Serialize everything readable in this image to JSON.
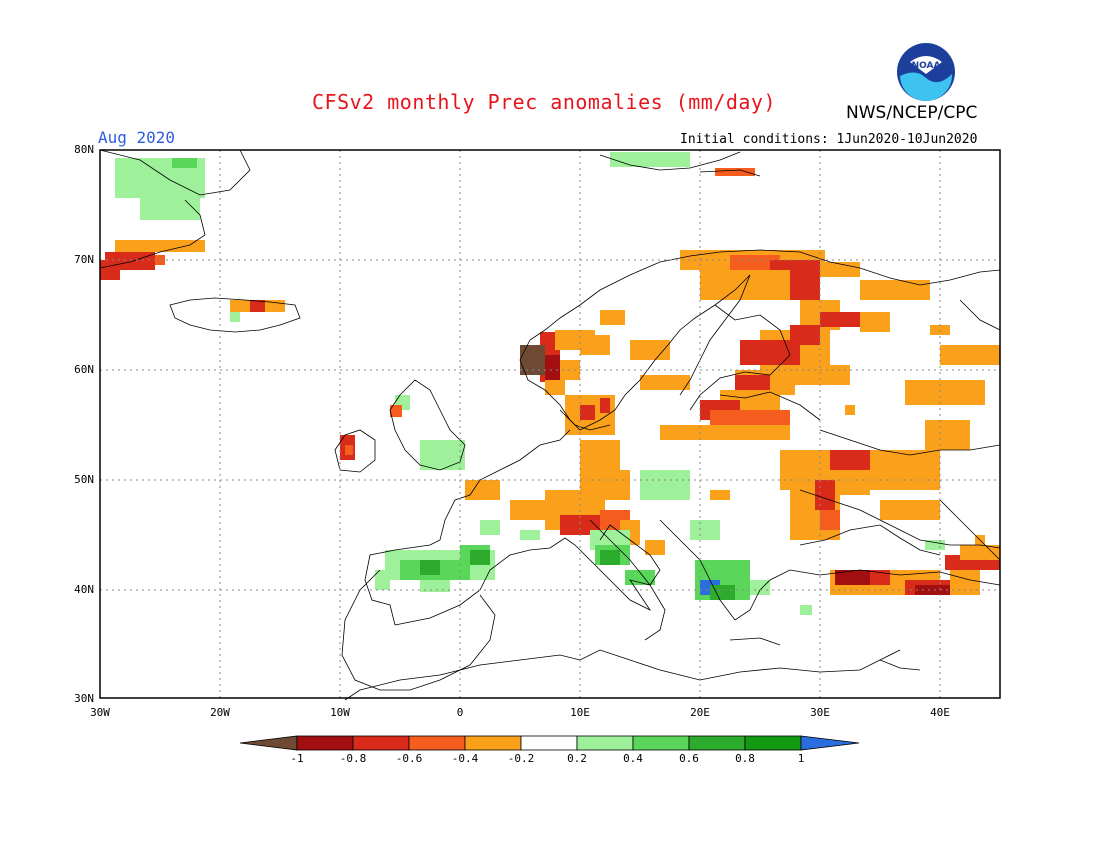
{
  "header": {
    "title": "CFSv2 monthly Prec anomalies (mm/day)",
    "org": "NWS/NCEP/CPC",
    "month": "Aug 2020",
    "initial_conditions": "Initial conditions: 1Jun2020-10Jun2020",
    "logo_text": "NOAA"
  },
  "axes": {
    "lat_labels": [
      "80N",
      "70N",
      "60N",
      "50N",
      "40N",
      "30N"
    ],
    "lon_labels": [
      "30W",
      "20W",
      "10W",
      "0",
      "10E",
      "20E",
      "30E",
      "40E"
    ]
  },
  "colorbar": {
    "labels": [
      "-1",
      "-0.8",
      "-0.6",
      "-0.4",
      "-0.2",
      "0.2",
      "0.4",
      "0.6",
      "0.8",
      "1"
    ],
    "colors": [
      "#6e4a34",
      "#a30f10",
      "#d92b1a",
      "#f55d1e",
      "#fba01a",
      "#ffffff",
      "#9ef19a",
      "#5ad75a",
      "#2cab2c",
      "#139a13",
      "#2a6ede"
    ]
  },
  "palette": {
    "brown": "#6e4a34",
    "darkred": "#a30f10",
    "red": "#d92b1a",
    "orangered": "#f55d1e",
    "orange": "#fba01a",
    "lightgreen": "#9ef19a",
    "green": "#5ad75a",
    "darkgreen": "#2cab2c",
    "blue": "#2a6ede"
  }
}
